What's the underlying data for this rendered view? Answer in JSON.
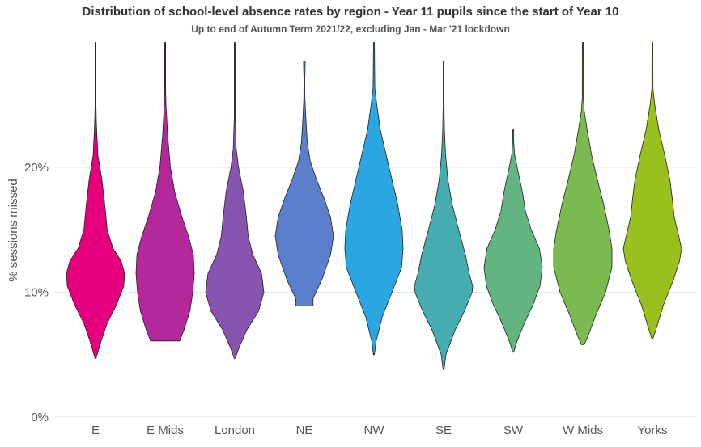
{
  "chart_data": {
    "type": "violin",
    "title": "Distribution of school-level absence rates by region - Year 11 pupils since the start of Year 10",
    "subtitle": "Up to end of Autumn Term 2021/22, excluding Jan - Mar '21 lockdown",
    "xlabel": "",
    "ylabel": "% sessions missed",
    "ylim": [
      0,
      30
    ],
    "yticks": [
      0,
      10,
      20
    ],
    "ytick_labels": [
      "0%",
      "10%",
      "20%"
    ],
    "grid": "horizontal",
    "legend": "none",
    "categories": [
      "E",
      "E Mids",
      "London",
      "NE",
      "NW",
      "SE",
      "SW",
      "W Mids",
      "Yorks"
    ],
    "series": [
      {
        "category": "E",
        "color": "#e6007e",
        "min": 4.7,
        "max": 30,
        "profile": [
          [
            4.7,
            0
          ],
          [
            6,
            0.18
          ],
          [
            7.5,
            0.4
          ],
          [
            9,
            0.72
          ],
          [
            10.5,
            0.97
          ],
          [
            11.5,
            1.0
          ],
          [
            12.5,
            0.88
          ],
          [
            13.5,
            0.6
          ],
          [
            15,
            0.4
          ],
          [
            17,
            0.32
          ],
          [
            19,
            0.22
          ],
          [
            21,
            0.08
          ],
          [
            23.5,
            0.03
          ],
          [
            25,
            0.01
          ],
          [
            30,
            0.005
          ]
        ]
      },
      {
        "category": "E Mids",
        "color": "#b5289b",
        "min": 6.1,
        "max": 30,
        "profile": [
          [
            6.1,
            0.5
          ],
          [
            7,
            0.65
          ],
          [
            8.5,
            0.85
          ],
          [
            10,
            0.95
          ],
          [
            11.5,
            1.0
          ],
          [
            13,
            0.97
          ],
          [
            14.5,
            0.8
          ],
          [
            16,
            0.58
          ],
          [
            18,
            0.33
          ],
          [
            20,
            0.18
          ],
          [
            22.5,
            0.09
          ],
          [
            25,
            0.03
          ],
          [
            26.2,
            0.01
          ],
          [
            30,
            0.005
          ]
        ]
      },
      {
        "category": "London",
        "color": "#8755b0",
        "min": 4.7,
        "max": 30,
        "profile": [
          [
            4.7,
            0
          ],
          [
            5.5,
            0.14
          ],
          [
            7,
            0.42
          ],
          [
            8.5,
            0.82
          ],
          [
            10,
            1.0
          ],
          [
            11.5,
            0.92
          ],
          [
            13,
            0.62
          ],
          [
            14.5,
            0.46
          ],
          [
            16,
            0.4
          ],
          [
            18,
            0.3
          ],
          [
            20,
            0.13
          ],
          [
            21.5,
            0.05
          ],
          [
            24,
            0.01
          ],
          [
            30,
            0.005
          ]
        ]
      },
      {
        "category": "NE",
        "color": "#5b7fcb",
        "min": 8.9,
        "max": 28.5,
        "profile": [
          [
            8.9,
            0.3
          ],
          [
            9.5,
            0.3
          ],
          [
            11,
            0.6
          ],
          [
            13,
            0.9
          ],
          [
            14.5,
            1.0
          ],
          [
            16,
            0.9
          ],
          [
            17.5,
            0.68
          ],
          [
            19,
            0.42
          ],
          [
            20.5,
            0.2
          ],
          [
            22,
            0.1
          ],
          [
            24,
            0.05
          ],
          [
            25.5,
            0.02
          ],
          [
            27,
            0.01
          ],
          [
            28.5,
            0.03
          ]
        ]
      },
      {
        "category": "NW",
        "color": "#2aa7e3",
        "min": 5.0,
        "max": 30,
        "profile": [
          [
            5,
            0
          ],
          [
            6,
            0.07
          ],
          [
            8,
            0.28
          ],
          [
            10,
            0.62
          ],
          [
            12,
            0.95
          ],
          [
            13.5,
            1.0
          ],
          [
            15,
            0.97
          ],
          [
            17,
            0.82
          ],
          [
            19,
            0.62
          ],
          [
            21,
            0.42
          ],
          [
            23,
            0.22
          ],
          [
            25,
            0.1
          ],
          [
            26.3,
            0.03
          ],
          [
            30,
            0.005
          ]
        ]
      },
      {
        "category": "SE",
        "color": "#45adb1",
        "min": 3.8,
        "max": 28.5,
        "profile": [
          [
            3.8,
            0
          ],
          [
            5,
            0.08
          ],
          [
            7,
            0.4
          ],
          [
            8.5,
            0.72
          ],
          [
            10,
            0.98
          ],
          [
            10.5,
            1.0
          ],
          [
            11.5,
            0.88
          ],
          [
            13,
            0.75
          ],
          [
            15,
            0.52
          ],
          [
            17,
            0.3
          ],
          [
            19,
            0.15
          ],
          [
            21,
            0.07
          ],
          [
            23,
            0.03
          ],
          [
            25,
            0.01
          ],
          [
            28.5,
            0.005
          ]
        ]
      },
      {
        "category": "SW",
        "color": "#62b580",
        "min": 5.2,
        "max": 23,
        "profile": [
          [
            5.2,
            0
          ],
          [
            6,
            0.12
          ],
          [
            7.5,
            0.38
          ],
          [
            9,
            0.68
          ],
          [
            10.5,
            0.92
          ],
          [
            12,
            1.0
          ],
          [
            13.5,
            0.9
          ],
          [
            15,
            0.62
          ],
          [
            16.5,
            0.42
          ],
          [
            18,
            0.32
          ],
          [
            19.5,
            0.18
          ],
          [
            21,
            0.05
          ],
          [
            22,
            0.02
          ],
          [
            23,
            0.005
          ]
        ]
      },
      {
        "category": "W Mids",
        "color": "#7aba4f",
        "min": 5.8,
        "max": 30,
        "profile": [
          [
            5.8,
            0.05
          ],
          [
            6.5,
            0.18
          ],
          [
            8,
            0.42
          ],
          [
            10,
            0.78
          ],
          [
            12,
            1.0
          ],
          [
            13.5,
            1.0
          ],
          [
            15,
            0.9
          ],
          [
            17,
            0.72
          ],
          [
            19,
            0.5
          ],
          [
            21,
            0.3
          ],
          [
            23,
            0.15
          ],
          [
            24.5,
            0.05
          ],
          [
            25.5,
            0.02
          ],
          [
            30,
            0.005
          ]
        ]
      },
      {
        "category": "Yorks",
        "color": "#98c11e",
        "min": 6.3,
        "max": 30,
        "profile": [
          [
            6.3,
            0.02
          ],
          [
            7,
            0.12
          ],
          [
            9,
            0.38
          ],
          [
            11,
            0.72
          ],
          [
            12.5,
            0.93
          ],
          [
            13.5,
            1.0
          ],
          [
            14.5,
            0.9
          ],
          [
            16,
            0.75
          ],
          [
            17.5,
            0.68
          ],
          [
            19,
            0.6
          ],
          [
            21,
            0.42
          ],
          [
            23,
            0.22
          ],
          [
            25,
            0.08
          ],
          [
            26.3,
            0.02
          ],
          [
            30,
            0.005
          ]
        ]
      }
    ]
  }
}
